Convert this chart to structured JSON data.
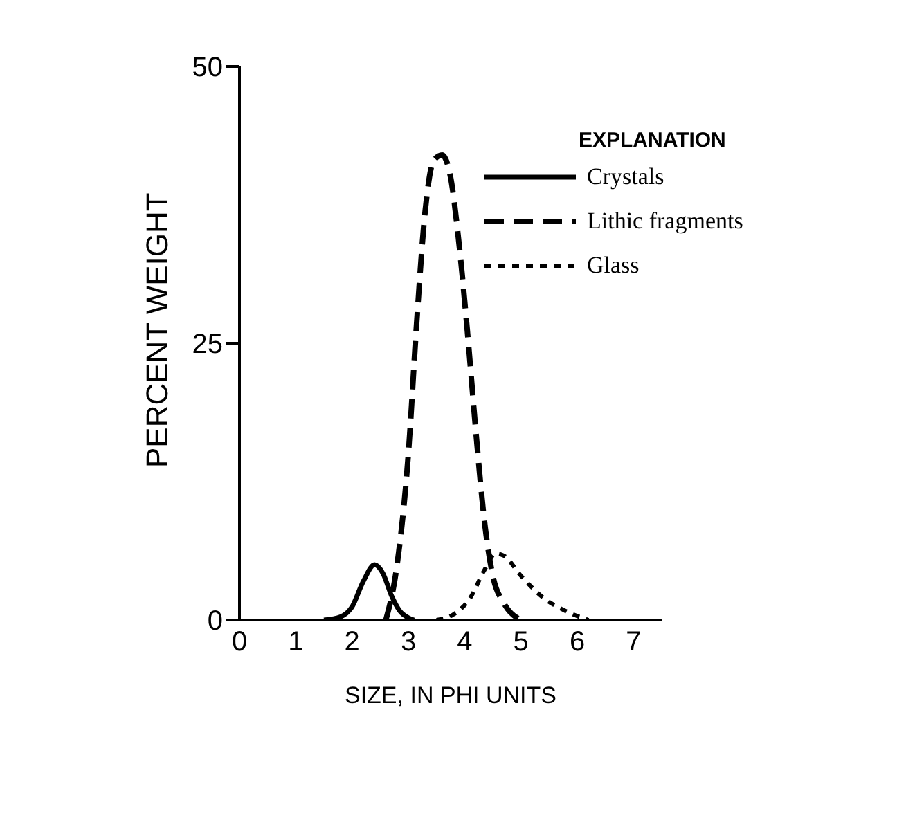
{
  "chart_data": {
    "type": "line",
    "xlabel": "SIZE, IN PHI UNITS",
    "ylabel": "PERCENT WEIGHT",
    "legend_title": "EXPLANATION",
    "legend": "top right",
    "marker": "none",
    "xlim": [
      0,
      7.5
    ],
    "xticks": [
      0,
      1,
      2,
      3,
      4,
      5,
      6,
      7
    ],
    "ylim": [
      0,
      50
    ],
    "yticks": [
      0,
      25,
      50
    ],
    "series": [
      {
        "name": "Crystals",
        "color": "#000000",
        "line_style": "solid",
        "x": [
          1.5,
          1.8,
          2.0,
          2.2,
          2.4,
          2.55,
          2.7,
          2.85,
          3.0,
          3.1
        ],
        "values": [
          0,
          0.3,
          1.2,
          3.5,
          5,
          4.2,
          2.2,
          0.8,
          0.2,
          0
        ]
      },
      {
        "name": "Lithic fragments",
        "color": "#000000",
        "line_style": "dashed",
        "x": [
          2.6,
          2.8,
          3.0,
          3.15,
          3.3,
          3.45,
          3.6,
          3.75,
          3.9,
          4.05,
          4.2,
          4.35,
          4.5,
          4.7,
          5.0
        ],
        "values": [
          0,
          5,
          15,
          27,
          37,
          41.5,
          42,
          40,
          34,
          26,
          17,
          9,
          4,
          1.5,
          0
        ]
      },
      {
        "name": "Glass",
        "color": "#000000",
        "line_style": "dotted",
        "x": [
          3.5,
          3.8,
          4.1,
          4.35,
          4.55,
          4.7,
          5.0,
          5.4,
          5.8,
          6.2
        ],
        "values": [
          0,
          0.5,
          2,
          4.5,
          6,
          5.8,
          4,
          2,
          0.8,
          0
        ]
      }
    ]
  }
}
